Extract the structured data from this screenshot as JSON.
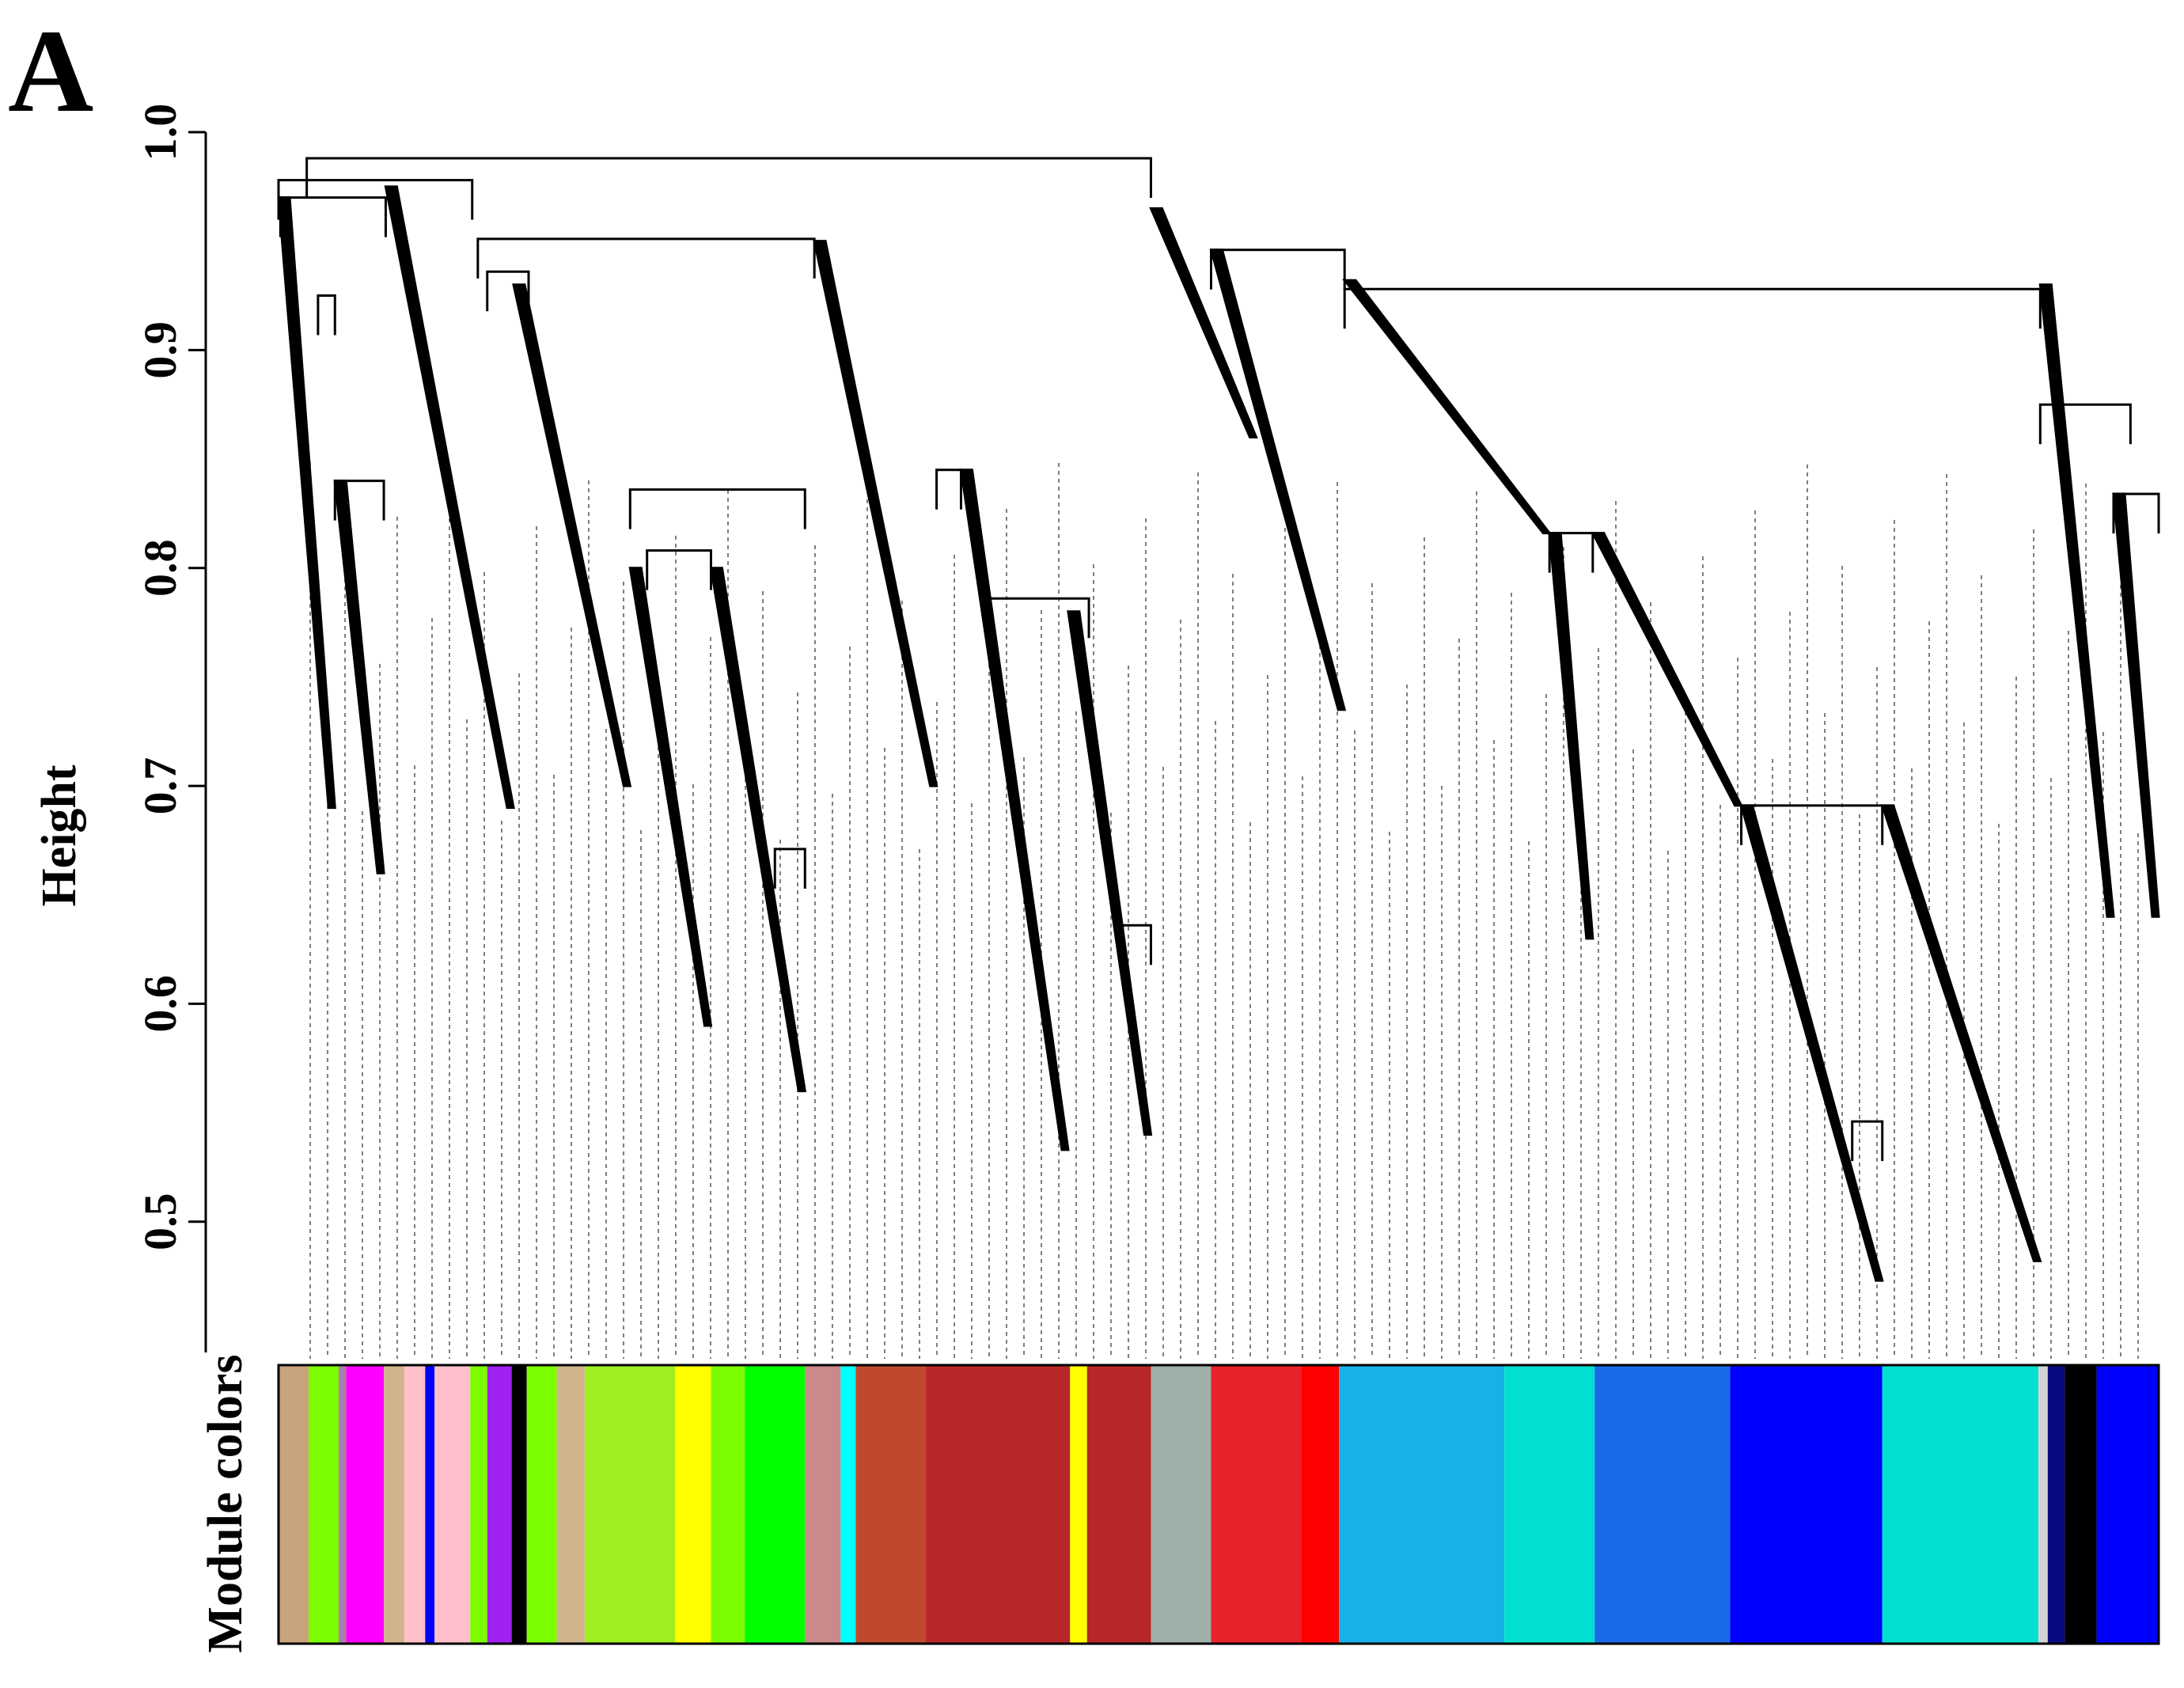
{
  "chart_data": {
    "type": "dendrogram",
    "panel_label": "A",
    "ylabel": "Height",
    "band_label": "Module colors",
    "xlim": [
      0,
      1
    ],
    "ylim": [
      0.44,
      1.0
    ],
    "yticks": [
      0.5,
      0.6,
      0.7,
      0.8,
      0.9,
      {
        "value": 1,
        "label": "1.0"
      }
    ],
    "line_color": "#000000",
    "links": [
      [
        0.015,
        0.464,
        0.988
      ],
      [
        0.0,
        0.103,
        0.978
      ],
      [
        0.001,
        0.057,
        0.97
      ],
      [
        0.106,
        0.285,
        0.951
      ],
      [
        0.496,
        0.567,
        0.946
      ],
      [
        0.567,
        0.937,
        0.928
      ],
      [
        0.937,
        0.985,
        0.875
      ],
      [
        0.187,
        0.28,
        0.836
      ],
      [
        0.196,
        0.23,
        0.808
      ],
      [
        0.35,
        0.363,
        0.845
      ],
      [
        0.378,
        0.431,
        0.786
      ],
      [
        0.676,
        0.699,
        0.816
      ],
      [
        0.778,
        0.853,
        0.691
      ],
      [
        0.976,
        1.0,
        0.834
      ],
      [
        0.111,
        0.133,
        0.936
      ],
      [
        0.021,
        0.03,
        0.925
      ],
      [
        0.03,
        0.056,
        0.84
      ],
      [
        0.837,
        0.853,
        0.546
      ],
      [
        0.449,
        0.464,
        0.636
      ],
      [
        0.264,
        0.28,
        0.671
      ]
    ],
    "clades": [
      [
        0.0,
        0.03,
        0.97,
        0.69
      ],
      [
        0.03,
        0.056,
        0.84,
        0.66
      ],
      [
        0.057,
        0.125,
        0.975,
        0.69
      ],
      [
        0.125,
        0.187,
        0.93,
        0.7
      ],
      [
        0.187,
        0.23,
        0.8,
        0.59
      ],
      [
        0.23,
        0.28,
        0.8,
        0.56
      ],
      [
        0.285,
        0.35,
        0.95,
        0.7
      ],
      [
        0.363,
        0.42,
        0.845,
        0.533
      ],
      [
        0.42,
        0.464,
        0.78,
        0.54
      ],
      [
        0.464,
        0.52,
        0.965,
        0.86
      ],
      [
        0.496,
        0.567,
        0.946,
        0.735
      ],
      [
        0.567,
        0.676,
        0.932,
        0.816
      ],
      [
        0.676,
        0.699,
        0.816,
        0.63
      ],
      [
        0.699,
        0.778,
        0.816,
        0.691
      ],
      [
        0.778,
        0.853,
        0.691,
        0.473
      ],
      [
        0.853,
        0.937,
        0.691,
        0.482
      ],
      [
        0.937,
        0.976,
        0.93,
        0.64
      ],
      [
        0.976,
        1.0,
        0.834,
        0.64
      ]
    ],
    "modules": {
      "breaks": [
        0,
        0.016,
        0.032,
        0.036,
        0.056,
        0.067,
        0.078,
        0.083,
        0.102,
        0.111,
        0.124,
        0.132,
        0.148,
        0.163,
        0.211,
        0.23,
        0.248,
        0.28,
        0.299,
        0.307,
        0.344,
        0.421,
        0.43,
        0.464,
        0.496,
        0.544,
        0.564,
        0.652,
        0.7,
        0.772,
        0.853,
        0.936,
        0.941,
        0.95,
        0.967,
        1
      ],
      "colors": [
        "#c9a27e",
        "#7cfc00",
        "#b07ab0",
        "#ff00ff",
        "#d2b48c",
        "#ffc0cb",
        "#0000ff",
        "#ffc0cb",
        "#7cfc00",
        "#a020f0",
        "#000000",
        "#7cfc00",
        "#d2b48c",
        "#9fef20",
        "#ffff00",
        "#7cfc00",
        "#00ff00",
        "#c98a8a",
        "#00ffff",
        "#c0492d",
        "#b8272a",
        "#ffff00",
        "#b8272a",
        "#9fb0a8",
        "#e8222a",
        "#ff0000",
        "#18b0e8",
        "#00e0d0",
        "#1a6ae8",
        "#0000ff",
        "#00e0d0",
        "#d3d3d3",
        "#0a0a80",
        "#000000",
        "#0000ff"
      ]
    }
  }
}
